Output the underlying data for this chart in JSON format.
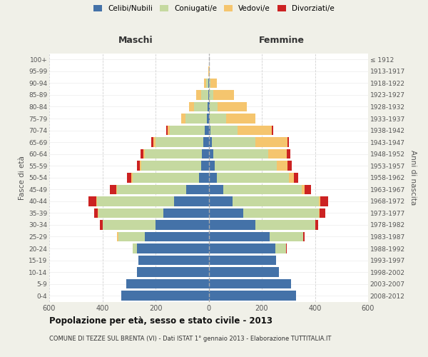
{
  "age_groups": [
    "0-4",
    "5-9",
    "10-14",
    "15-19",
    "20-24",
    "25-29",
    "30-34",
    "35-39",
    "40-44",
    "45-49",
    "50-54",
    "55-59",
    "60-64",
    "65-69",
    "70-74",
    "75-79",
    "80-84",
    "85-89",
    "90-94",
    "95-99",
    "100+"
  ],
  "birth_years": [
    "2008-2012",
    "2003-2007",
    "1998-2002",
    "1993-1997",
    "1988-1992",
    "1983-1987",
    "1978-1982",
    "1973-1977",
    "1968-1972",
    "1963-1967",
    "1958-1962",
    "1953-1957",
    "1948-1952",
    "1943-1947",
    "1938-1942",
    "1933-1937",
    "1928-1932",
    "1923-1927",
    "1918-1922",
    "1913-1917",
    "≤ 1912"
  ],
  "males": {
    "celibi": [
      330,
      310,
      270,
      265,
      270,
      240,
      200,
      170,
      130,
      85,
      35,
      28,
      25,
      20,
      15,
      8,
      5,
      2,
      2,
      0,
      0
    ],
    "coniugati": [
      0,
      0,
      0,
      0,
      15,
      100,
      200,
      245,
      290,
      260,
      250,
      225,
      215,
      180,
      130,
      80,
      50,
      25,
      8,
      0,
      0
    ],
    "vedovi": [
      0,
      0,
      0,
      0,
      2,
      5,
      0,
      2,
      3,
      3,
      5,
      5,
      5,
      8,
      10,
      15,
      20,
      20,
      8,
      2,
      0
    ],
    "divorziati": [
      0,
      0,
      0,
      0,
      0,
      0,
      10,
      15,
      30,
      25,
      18,
      12,
      12,
      8,
      5,
      0,
      0,
      0,
      0,
      0,
      0
    ]
  },
  "females": {
    "nubili": [
      330,
      310,
      265,
      255,
      250,
      230,
      175,
      130,
      90,
      55,
      32,
      22,
      18,
      12,
      8,
      5,
      3,
      2,
      2,
      0,
      0
    ],
    "coniugate": [
      0,
      0,
      0,
      0,
      40,
      125,
      225,
      285,
      325,
      295,
      270,
      235,
      205,
      165,
      100,
      60,
      30,
      15,
      5,
      0,
      0
    ],
    "vedove": [
      0,
      0,
      0,
      0,
      2,
      2,
      2,
      3,
      5,
      10,
      18,
      40,
      70,
      120,
      130,
      110,
      110,
      78,
      25,
      5,
      0
    ],
    "divorziate": [
      0,
      0,
      0,
      0,
      2,
      5,
      10,
      20,
      30,
      25,
      18,
      15,
      15,
      5,
      5,
      0,
      0,
      0,
      0,
      0,
      0
    ]
  },
  "colors": {
    "celibi": "#4472a8",
    "coniugati": "#c5d9a0",
    "vedovi": "#f5c56e",
    "divorziati": "#cc2222"
  },
  "title1": "Popolazione per età, sesso e stato civile - 2013",
  "title2": "COMUNE DI TEZZE SUL BRENTA (VI) - Dati ISTAT 1° gennaio 2013 - Elaborazione TUTTITALIA.IT",
  "label_maschi": "Maschi",
  "label_femmine": "Femmine",
  "ylabel_left": "Fasce di età",
  "ylabel_right": "Anni di nascita",
  "xlim": 600,
  "legend_labels": [
    "Celibi/Nubili",
    "Coniugati/e",
    "Vedovi/e",
    "Divorziati/e"
  ],
  "bg_color": "#f0f0e8",
  "plot_bg": "#ffffff"
}
